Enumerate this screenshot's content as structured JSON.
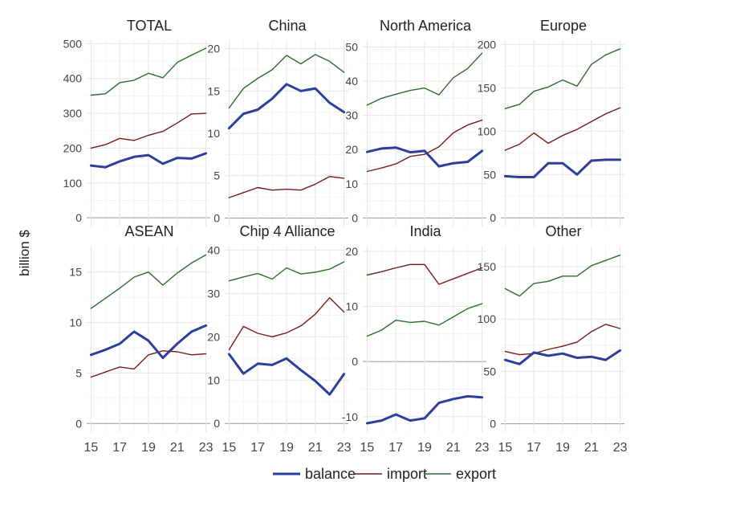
{
  "chart_data": {
    "type": "line",
    "ylabel": "billion $",
    "x_ticks": [
      "15",
      "17",
      "19",
      "21",
      "23"
    ],
    "x": [
      15,
      16,
      17,
      18,
      19,
      20,
      21,
      22,
      23
    ],
    "legend": {
      "position": "bottom",
      "entries": [
        {
          "name": "balance",
          "color": "#2e3f99"
        },
        {
          "name": "import",
          "color": "#7a1a1a"
        },
        {
          "name": "export",
          "color": "#2e6b2e"
        }
      ]
    },
    "grid": true,
    "panels": [
      {
        "title": "TOTAL",
        "ylim": [
          -25,
          510
        ],
        "yticks": [
          0,
          100,
          200,
          300,
          400,
          500
        ],
        "series": [
          {
            "name": "balance",
            "values": [
              150,
              145,
              162,
              175,
              180,
              155,
              172,
              170,
              185
            ]
          },
          {
            "name": "import",
            "values": [
              200,
              210,
              228,
              222,
              237,
              248,
              272,
              298,
              300
            ]
          },
          {
            "name": "export",
            "values": [
              352,
              356,
              388,
              395,
              415,
              402,
              446,
              467,
              487
            ]
          }
        ]
      },
      {
        "title": "China",
        "ylim": [
          -1,
          21
        ],
        "yticks": [
          0,
          5,
          10,
          15,
          20
        ],
        "series": [
          {
            "name": "balance",
            "values": [
              10.6,
              12.3,
              12.8,
              14.1,
              15.8,
              15.0,
              15.3,
              13.6,
              12.5
            ]
          },
          {
            "name": "import",
            "values": [
              2.4,
              3.0,
              3.6,
              3.3,
              3.4,
              3.3,
              4.0,
              4.9,
              4.7
            ]
          },
          {
            "name": "export",
            "values": [
              13.0,
              15.3,
              16.5,
              17.5,
              19.2,
              18.2,
              19.3,
              18.5,
              17.2
            ]
          }
        ]
      },
      {
        "title": "North America",
        "ylim": [
          -2.5,
          52
        ],
        "yticks": [
          0,
          10,
          20,
          30,
          40,
          50
        ],
        "series": [
          {
            "name": "balance",
            "values": [
              19.3,
              20.3,
              20.6,
              19.2,
              19.6,
              15.1,
              16.0,
              16.4,
              19.6
            ]
          },
          {
            "name": "import",
            "values": [
              13.6,
              14.6,
              15.8,
              18.0,
              18.6,
              20.8,
              24.9,
              27.2,
              28.6
            ]
          },
          {
            "name": "export",
            "values": [
              33.0,
              35.0,
              36.2,
              37.3,
              38.0,
              36.0,
              41.0,
              43.7,
              48.2
            ]
          }
        ]
      },
      {
        "title": "Europe",
        "ylim": [
          -10,
          205
        ],
        "yticks": [
          0,
          50,
          100,
          150,
          200
        ],
        "series": [
          {
            "name": "balance",
            "values": [
              48,
              47,
              47,
              63,
              63,
              50,
              66,
              67,
              67
            ]
          },
          {
            "name": "import",
            "values": [
              78,
              85,
              98,
              86,
              95,
              102,
              111,
              120,
              127
            ]
          },
          {
            "name": "export",
            "values": [
              126,
              131,
              146,
              151,
              159,
              152,
              177,
              188,
              195
            ]
          }
        ]
      },
      {
        "title": "ASEAN",
        "ylim": [
          -0.85,
          17.6
        ],
        "yticks": [
          0,
          5,
          10,
          15
        ],
        "series": [
          {
            "name": "balance",
            "values": [
              6.8,
              7.3,
              7.9,
              9.1,
              8.2,
              6.5,
              7.9,
              9.1,
              9.7
            ]
          },
          {
            "name": "import",
            "values": [
              4.6,
              5.1,
              5.6,
              5.4,
              6.8,
              7.2,
              7.1,
              6.8,
              6.9
            ]
          },
          {
            "name": "export",
            "values": [
              11.4,
              12.4,
              13.4,
              14.5,
              15.0,
              13.7,
              14.9,
              15.9,
              16.7
            ]
          }
        ]
      },
      {
        "title": "Chip 4 Alliance",
        "ylim": [
          -2,
          41
        ],
        "yticks": [
          0,
          10,
          20,
          30,
          40
        ],
        "series": [
          {
            "name": "balance",
            "values": [
              16.0,
              11.5,
              13.8,
              13.5,
              15.0,
              12.3,
              9.8,
              6.7,
              11.4
            ]
          },
          {
            "name": "import",
            "values": [
              17.0,
              22.4,
              20.8,
              20.0,
              20.9,
              22.5,
              25.2,
              29.0,
              25.7
            ]
          },
          {
            "name": "export",
            "values": [
              32.9,
              33.8,
              34.6,
              33.3,
              35.9,
              34.5,
              34.9,
              35.6,
              37.3
            ]
          }
        ]
      },
      {
        "title": "India",
        "ylim": [
          -12.8,
          21
        ],
        "yticks": [
          -10,
          0,
          10,
          20
        ],
        "series": [
          {
            "name": "balance",
            "values": [
              -11.2,
              -10.7,
              -9.6,
              -10.7,
              -10.3,
              -7.5,
              -6.8,
              -6.3,
              -6.5
            ]
          },
          {
            "name": "import",
            "values": [
              15.7,
              16.3,
              17.0,
              17.6,
              17.6,
              14.0,
              15.0,
              16.0,
              17.0
            ]
          },
          {
            "name": "export",
            "values": [
              4.6,
              5.7,
              7.5,
              7.1,
              7.3,
              6.6,
              8.1,
              9.6,
              10.5
            ]
          }
        ]
      },
      {
        "title": "Other",
        "ylim": [
          -8,
          170
        ],
        "yticks": [
          0,
          50,
          100,
          150
        ],
        "series": [
          {
            "name": "balance",
            "values": [
              61,
              57,
              68,
              65,
              67,
              63,
              64,
              61,
              70
            ]
          },
          {
            "name": "import",
            "values": [
              69,
              66,
              67,
              71,
              74,
              78,
              88,
              95,
              91
            ]
          },
          {
            "name": "export",
            "values": [
              129,
              122,
              134,
              136,
              141,
              141,
              151,
              156,
              161
            ]
          }
        ]
      }
    ]
  }
}
